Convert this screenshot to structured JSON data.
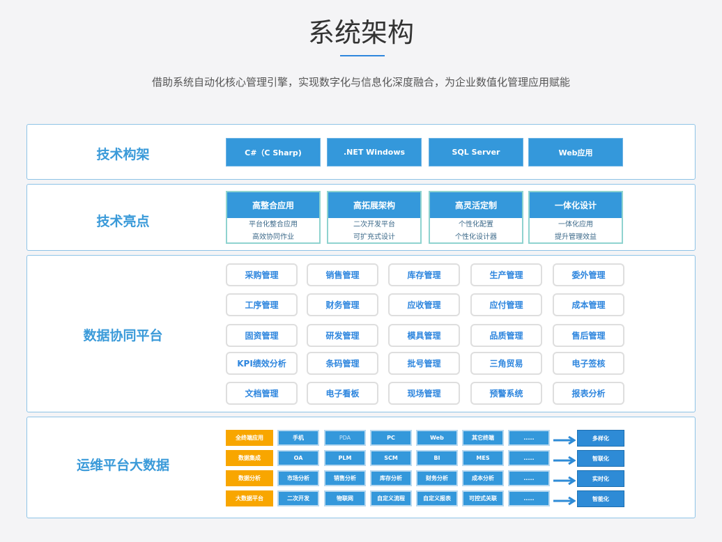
{
  "header": {
    "title": "系统架构",
    "subtitle": "借助系统自动化核心管理引擎，实现数字化与信息化深度融合，为企业数值化管理应用赋能"
  },
  "tech_framework": {
    "label": "技术构架",
    "items": [
      "C#（C Sharp)",
      ".NET Windows",
      "SQL Server",
      "Web应用"
    ]
  },
  "tech_highlights": {
    "label": "技术亮点",
    "cards": [
      {
        "title": "高整合应用",
        "lines": [
          "平台化整合应用",
          "高效协同作业"
        ]
      },
      {
        "title": "高拓展架构",
        "lines": [
          "二次开发平台",
          "可扩充式设计"
        ]
      },
      {
        "title": "高灵活定制",
        "lines": [
          "个性化配置",
          "个性化设计器"
        ]
      },
      {
        "title": "一体化设计",
        "lines": [
          "一体化应用",
          "提升管理效益"
        ]
      }
    ]
  },
  "data_platform": {
    "label": "数据协同平台",
    "modules": [
      "采购管理",
      "销售管理",
      "库存管理",
      "生产管理",
      "委外管理",
      "工序管理",
      "财务管理",
      "应收管理",
      "应付管理",
      "成本管理",
      "固资管理",
      "研发管理",
      "模具管理",
      "品质管理",
      "售后管理",
      "KPI绩效分析",
      "条码管理",
      "批号管理",
      "三角贸易",
      "电子签核",
      "文档管理",
      "电子看板",
      "现场管理",
      "预警系统",
      "报表分析"
    ]
  },
  "ops_platform": {
    "label": "运维平台大数据",
    "accent_color": "#f8a600",
    "rows": [
      {
        "category": "全终端应用",
        "items": [
          "手机",
          "PDA",
          "PC",
          "Web",
          "其它终端",
          "....."
        ],
        "result": "多样化"
      },
      {
        "category": "数据集成",
        "items": [
          "OA",
          "PLM",
          "SCM",
          "BI",
          "MES",
          "....."
        ],
        "result": "智联化"
      },
      {
        "category": "数据分析",
        "items": [
          "市场分析",
          "销售分析",
          "库存分析",
          "财务分析",
          "成本分析",
          "....."
        ],
        "result": "实时化"
      },
      {
        "category": "大数据平台",
        "items": [
          "二次开发",
          "物联网",
          "自定义流程",
          "自定义报表",
          "可控式关联",
          "....."
        ],
        "result": "智能化"
      }
    ]
  }
}
